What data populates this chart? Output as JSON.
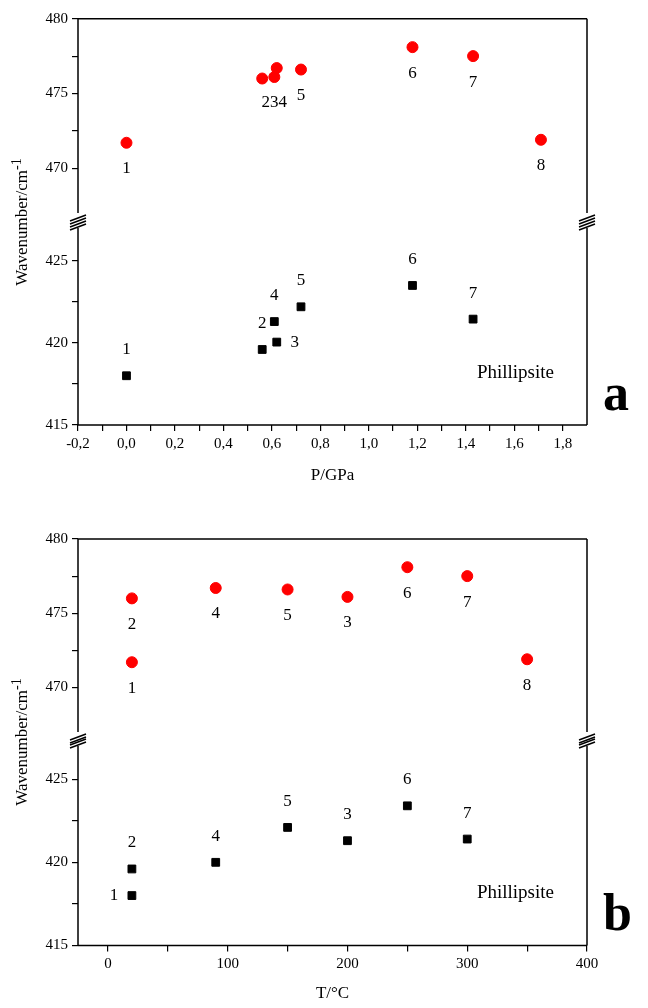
{
  "chart_data": [
    {
      "type": "scatter",
      "x": [
        0.0,
        0.56,
        0.61,
        0.62,
        0.72,
        1.18,
        1.43,
        1.71
      ],
      "marker": "circle",
      "tick_labels": "y",
      "series": [
        {
          "color": "#ff0000",
          "values": [
            471.7,
            476.0,
            476.1,
            476.7,
            476.6,
            478.1,
            477.5,
            471.9
          ]
        }
      ],
      "xlim": [
        -0.2,
        1.9
      ],
      "ylim": [
        467,
        480
      ],
      "yticks": [
        470,
        {
          "value": 472.5,
          "label": null
        },
        475,
        {
          "value": 477.5,
          "label": null
        },
        480
      ],
      "annotations": [
        {
          "text": "1",
          "x": 0.0,
          "y": 471.7
        },
        {
          "text": "234",
          "x": 0.61,
          "y": 476.1
        },
        {
          "text": "5",
          "x": 0.72,
          "y": 476.6
        },
        {
          "text": "6",
          "x": 1.18,
          "y": 478.1
        },
        {
          "text": "7",
          "x": 1.43,
          "y": 477.5
        },
        {
          "text": "8",
          "x": 1.71,
          "y": 471.9
        }
      ]
    },
    {
      "type": "scatter",
      "x": [
        0.0,
        0.56,
        0.61,
        0.62,
        0.72,
        1.18,
        1.43
      ],
      "marker": "square",
      "xlabel": "P/GPa",
      "ylabel": "Wavenumber/cm$^{-1}$",
      "series": [
        {
          "color": "#000000",
          "values": [
            418.0,
            419.6,
            421.3,
            420.05,
            422.2,
            423.5,
            421.45
          ]
        }
      ],
      "xlim": [
        -0.2,
        1.9
      ],
      "ylim": [
        415,
        427
      ],
      "xticks": [
        {
          "value": -0.2,
          "label": "-0,2"
        },
        {
          "value": -0.1,
          "label": null
        },
        {
          "value": 0,
          "label": "0,0"
        },
        {
          "value": 0.1,
          "label": null
        },
        {
          "value": 0.2,
          "label": "0,2"
        },
        {
          "value": 0.3,
          "label": null
        },
        {
          "value": 0.4,
          "label": "0,4"
        },
        {
          "value": 0.5,
          "label": null
        },
        {
          "value": 0.6,
          "label": "0,6"
        },
        {
          "value": 0.7,
          "label": null
        },
        {
          "value": 0.8,
          "label": "0,8"
        },
        {
          "value": 0.9,
          "label": null
        },
        {
          "value": 1.0,
          "label": "1,0"
        },
        {
          "value": 1.1,
          "label": null
        },
        {
          "value": 1.2,
          "label": "1,2"
        },
        {
          "value": 1.3,
          "label": null
        },
        {
          "value": 1.4,
          "label": "1,4"
        },
        {
          "value": 1.5,
          "label": null
        },
        {
          "value": 1.6,
          "label": "1,6"
        },
        {
          "value": 1.7,
          "label": null
        },
        {
          "value": 1.8,
          "label": "1,8"
        }
      ],
      "yticks": [
        415,
        {
          "value": 417.5,
          "label": null
        },
        420,
        {
          "value": 422.5,
          "label": null
        },
        425
      ],
      "annotations": [
        {
          "text": "1",
          "x": 0.0,
          "y": 418.0
        },
        {
          "text": "2",
          "x": 0.56,
          "y": 419.6
        },
        {
          "text": "4",
          "x": 0.61,
          "y": 421.3
        },
        {
          "text": "3",
          "x": 0.62,
          "y": 420.05
        },
        {
          "text": "5",
          "x": 0.72,
          "y": 422.2
        },
        {
          "text": "6",
          "x": 1.18,
          "y": 423.5
        },
        {
          "text": "7",
          "x": 1.43,
          "y": 421.45
        },
        "Phillipsite",
        "a"
      ]
    },
    {
      "type": "scatter",
      "x": [
        20,
        20,
        90,
        150,
        200,
        250,
        300,
        350
      ],
      "marker": "circle",
      "tick_labels": "y",
      "series": [
        {
          "color": "#ff0000",
          "values": [
            471.7,
            476.0,
            476.7,
            476.6,
            476.1,
            478.1,
            477.5,
            471.9
          ]
        }
      ],
      "xlim": [
        -25,
        400
      ],
      "ylim": [
        467,
        480
      ],
      "yticks": [
        470,
        {
          "value": 472.5,
          "label": null
        },
        475,
        {
          "value": 477.5,
          "label": null
        },
        480
      ],
      "annotations": [
        {
          "text": "1",
          "x": 20,
          "y": 471.7
        },
        {
          "text": "2",
          "x": 20,
          "y": 476.0
        },
        {
          "text": "4",
          "x": 90,
          "y": 476.7
        },
        {
          "text": "5",
          "x": 150,
          "y": 476.6
        },
        {
          "text": "3",
          "x": 200,
          "y": 476.1
        },
        {
          "text": "6",
          "x": 250,
          "y": 478.1
        },
        {
          "text": "7",
          "x": 300,
          "y": 477.5
        },
        {
          "text": "8",
          "x": 350,
          "y": 471.9
        }
      ]
    },
    {
      "type": "scatter",
      "x": [
        20,
        20,
        90,
        150,
        200,
        250,
        300
      ],
      "marker": "square",
      "xlabel": "T/°C",
      "ylabel": "Wavenumber/cm$^{-1}$",
      "series": [
        {
          "color": "#000000",
          "values": [
            419.6,
            418.0,
            420.0,
            422.1,
            421.3,
            423.4,
            421.4
          ]
        }
      ],
      "xlim": [
        -25,
        400
      ],
      "ylim": [
        415,
        427
      ],
      "xticks": [
        0,
        {
          "value": 50,
          "label": null
        },
        100,
        {
          "value": 150,
          "label": null
        },
        200,
        {
          "value": 250,
          "label": null
        },
        300,
        {
          "value": 350,
          "label": null
        },
        400
      ],
      "yticks": [
        415,
        {
          "value": 417.5,
          "label": null
        },
        420,
        {
          "value": 422.5,
          "label": null
        },
        425
      ],
      "annotations": [
        {
          "text": "2",
          "x": 20,
          "y": 419.6
        },
        {
          "text": "1",
          "x": 20,
          "y": 418.0
        },
        {
          "text": "4",
          "x": 90,
          "y": 420.0
        },
        {
          "text": "5",
          "x": 150,
          "y": 422.1
        },
        {
          "text": "3",
          "x": 200,
          "y": 421.3
        },
        {
          "text": "6",
          "x": 250,
          "y": 423.4
        },
        {
          "text": "7",
          "x": 300,
          "y": 421.4
        },
        "Phillipsite",
        "b"
      ]
    }
  ]
}
